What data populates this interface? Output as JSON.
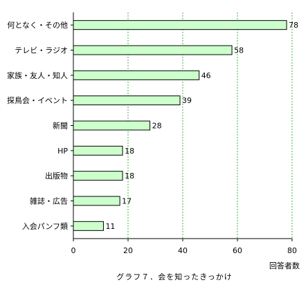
{
  "chart_data": {
    "type": "bar",
    "orientation": "horizontal",
    "categories": [
      "何となく・その他",
      "テレビ・ラジオ",
      "家族・友人・知人",
      "探鳥会・イベント",
      "新聞",
      "HP",
      "出版物",
      "雑誌・広告",
      "入会パンフ類"
    ],
    "values": [
      78,
      58,
      46,
      39,
      28,
      18,
      18,
      17,
      11
    ],
    "xlabel": "回答者数",
    "xlim": [
      0,
      80
    ],
    "xticks": [
      0,
      20,
      40,
      60,
      80
    ],
    "grid": "vertical-dashed",
    "caption": "グラフ７．会を知ったきっかけ",
    "colors": {
      "bar_fill": "#ccffcc",
      "bar_stroke": "#000000",
      "grid": "#33bb33"
    }
  }
}
